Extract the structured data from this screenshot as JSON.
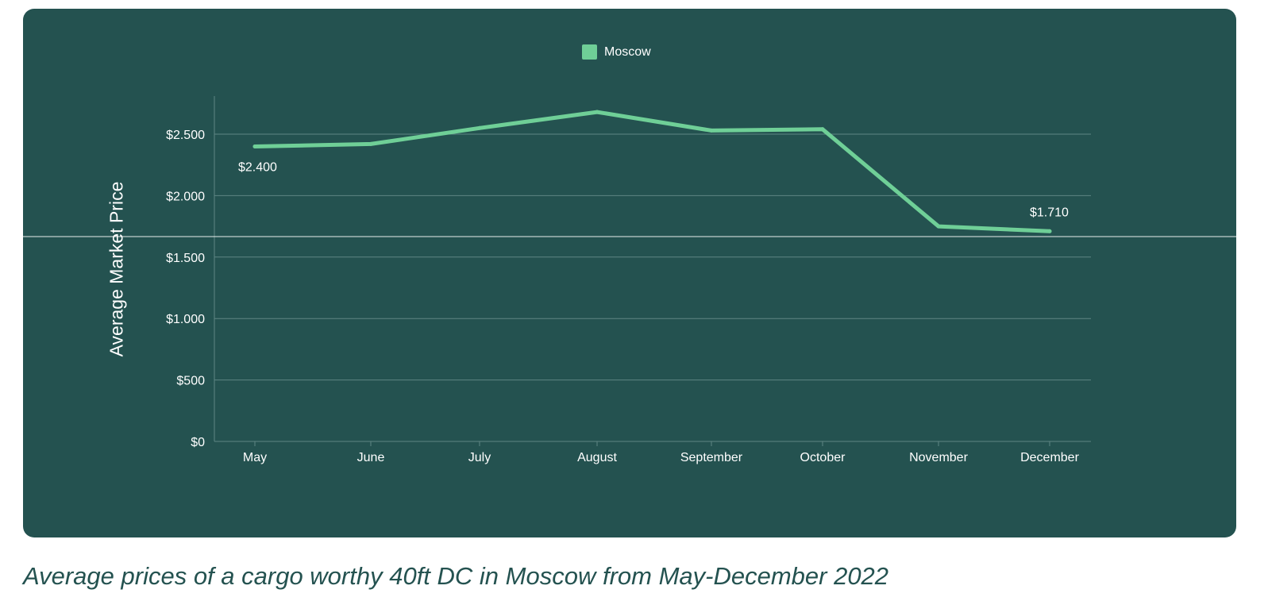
{
  "colors": {
    "card_background": "#245250",
    "series_line": "#6fcf97",
    "gridline": "#5e8583",
    "text": "#ffffff",
    "caption_text": "#245250"
  },
  "caption": "Average prices of a cargo worthy 40ft DC in Moscow from May-December 2022",
  "chart_data": {
    "type": "line",
    "title": "",
    "xlabel": "",
    "ylabel": "Average Market Price",
    "categories": [
      "May",
      "June",
      "July",
      "August",
      "September",
      "October",
      "November",
      "December"
    ],
    "series": [
      {
        "name": "Moscow",
        "color": "#6fcf97",
        "values": [
          2400,
          2420,
          2550,
          2680,
          2530,
          2540,
          1750,
          1710
        ]
      }
    ],
    "ylim": [
      0,
      2800
    ],
    "yticks": [
      0,
      500,
      1000,
      1500,
      2000,
      2500
    ],
    "ytick_labels": [
      "$0",
      "$500",
      "$1.000",
      "$1.500",
      "$2.000",
      "$2.500"
    ],
    "data_labels": [
      {
        "category": "May",
        "text": "$2.400"
      },
      {
        "category": "December",
        "text": "$1.710"
      }
    ],
    "grid": true,
    "legend": "top-center"
  }
}
